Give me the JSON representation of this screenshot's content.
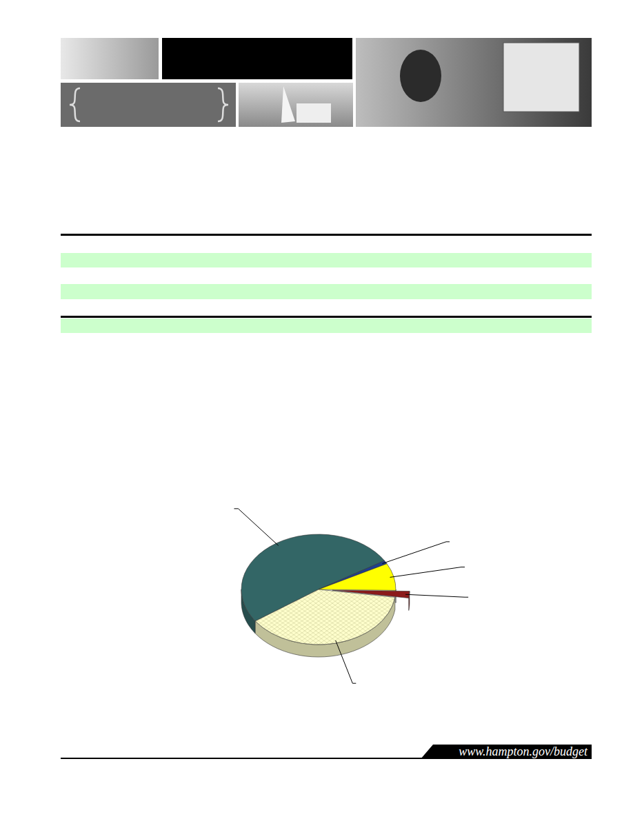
{
  "footer": {
    "url": "www.hampton.gov/budget"
  },
  "chart_data": {
    "type": "pie",
    "categories": [
      null,
      null,
      null,
      null,
      null
    ],
    "values": [
      51,
      1,
      8,
      2,
      38
    ],
    "colors": [
      "#336666",
      "#1f3f8f",
      "#ffff00",
      "#8b1a1a",
      "#ffffcc"
    ],
    "data_labels": false
  }
}
